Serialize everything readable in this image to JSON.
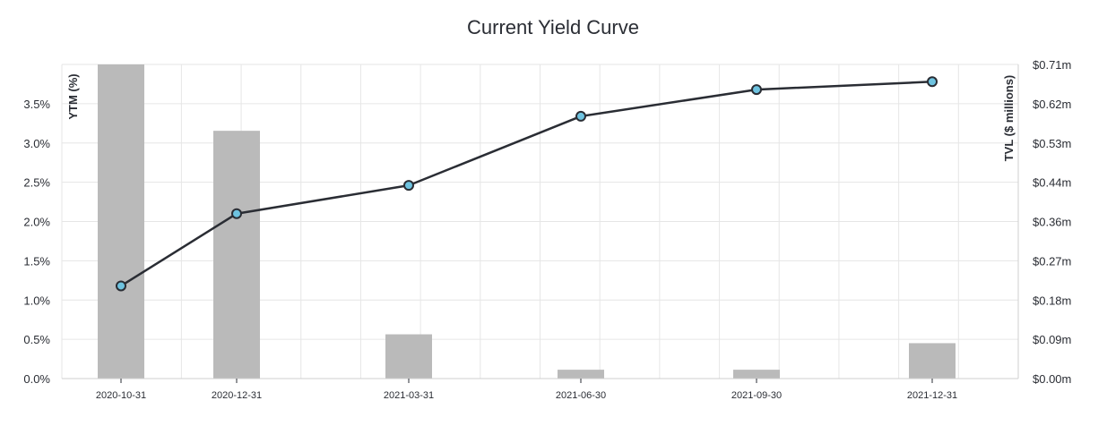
{
  "chart_data": {
    "type": "line",
    "title": "Current Yield Curve",
    "y_left_label": "YTM (%)",
    "y_right_label": "TVL ($ millions)",
    "categories": [
      "2020-10-31",
      "2020-12-31",
      "2021-03-31",
      "2021-06-30",
      "2021-09-30",
      "2021-12-31"
    ],
    "ytm_percent": [
      1.18,
      2.1,
      2.46,
      3.34,
      3.68,
      3.78
    ],
    "tvl_millions": [
      0.71,
      0.56,
      0.1,
      0.02,
      0.02,
      0.08
    ],
    "y_left_ticks": [
      "0.0%",
      "0.5%",
      "1.0%",
      "1.5%",
      "2.0%",
      "2.5%",
      "3.0%",
      "3.5%"
    ],
    "y_left_range": [
      0,
      4.0
    ],
    "y_right_ticks": [
      "$0.00m",
      "$0.09m",
      "$0.18m",
      "$0.27m",
      "$0.36m",
      "$0.44m",
      "$0.53m",
      "$0.62m",
      "$0.71m"
    ],
    "y_right_range": [
      0,
      0.71
    ],
    "grid": true,
    "colors": {
      "line": "#2a2d34",
      "marker_fill": "#6ec3e0",
      "bar": "#bababa",
      "grid": "#e6e6e6",
      "text": "#2a2d34"
    }
  }
}
